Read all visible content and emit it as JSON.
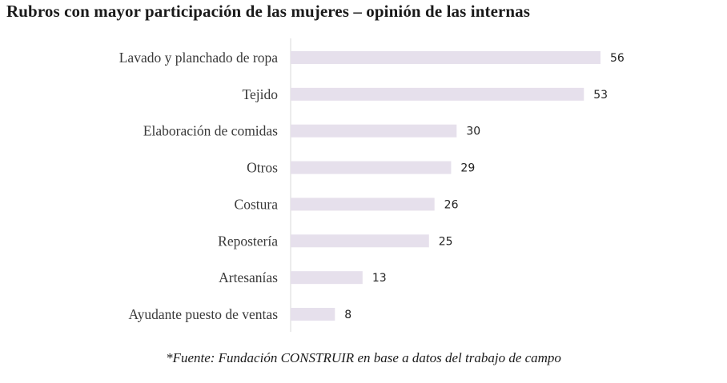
{
  "chart_data": {
    "type": "bar",
    "orientation": "horizontal",
    "title": "Rubros con mayor participación de las mujeres – opinión de las internas",
    "categories": [
      "Lavado y planchado de ropa",
      "Tejido",
      "Elaboración de comidas",
      "Otros",
      "Costura",
      "Repostería",
      "Artesanías",
      "Ayudante puesto de ventas"
    ],
    "values": [
      56,
      53,
      30,
      29,
      26,
      25,
      13,
      8
    ],
    "xlim": [
      0,
      56
    ],
    "grid": false,
    "data_labels": true,
    "bar_color": "#e6e0ec",
    "axis_color": "#d9d9d9"
  },
  "source_note": "*Fuente: Fundación CONSTRUIR en base a datos del trabajo de campo"
}
